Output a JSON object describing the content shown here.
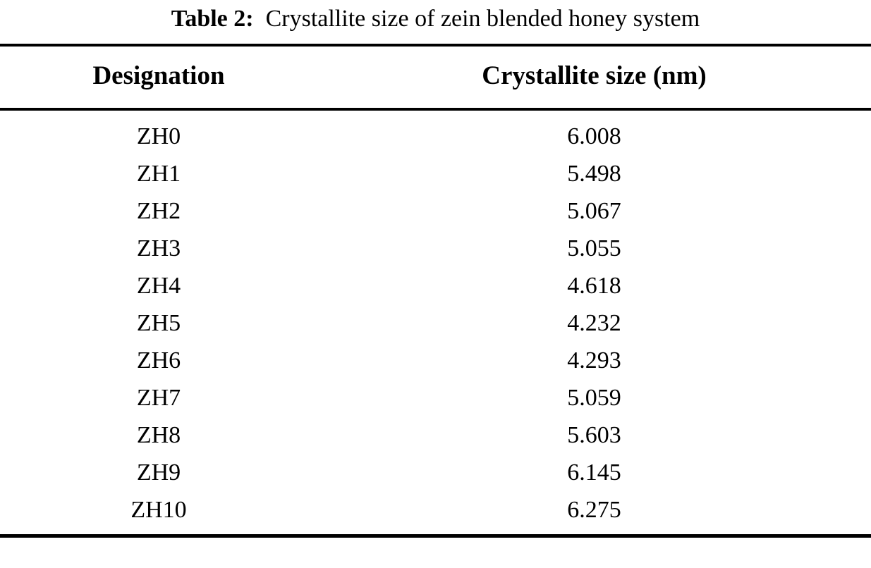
{
  "caption": {
    "label": "Table 2:",
    "text": "Crystallite size of zein blended honey system"
  },
  "table": {
    "header": [
      "Designation",
      "Crystallite size (nm)"
    ],
    "rows": [
      [
        "ZH0",
        "6.008"
      ],
      [
        "ZH1",
        "5.498"
      ],
      [
        "ZH2",
        "5.067"
      ],
      [
        "ZH3",
        "5.055"
      ],
      [
        "ZH4",
        "4.618"
      ],
      [
        "ZH5",
        "4.232"
      ],
      [
        "ZH6",
        "4.293"
      ],
      [
        "ZH7",
        "5.059"
      ],
      [
        "ZH8",
        "5.603"
      ],
      [
        "ZH9",
        "6.145"
      ],
      [
        "ZH10",
        "6.275"
      ]
    ]
  },
  "chart_data": {
    "type": "table",
    "title": "Table 2: Crystallite size of zein blended honey system",
    "columns": [
      "Designation",
      "Crystallite size (nm)"
    ],
    "rows": [
      [
        "ZH0",
        6.008
      ],
      [
        "ZH1",
        5.498
      ],
      [
        "ZH2",
        5.067
      ],
      [
        "ZH3",
        5.055
      ],
      [
        "ZH4",
        4.618
      ],
      [
        "ZH5",
        4.232
      ],
      [
        "ZH6",
        4.293
      ],
      [
        "ZH7",
        5.059
      ],
      [
        "ZH8",
        5.603
      ],
      [
        "ZH9",
        6.145
      ],
      [
        "ZH10",
        6.275
      ]
    ]
  }
}
